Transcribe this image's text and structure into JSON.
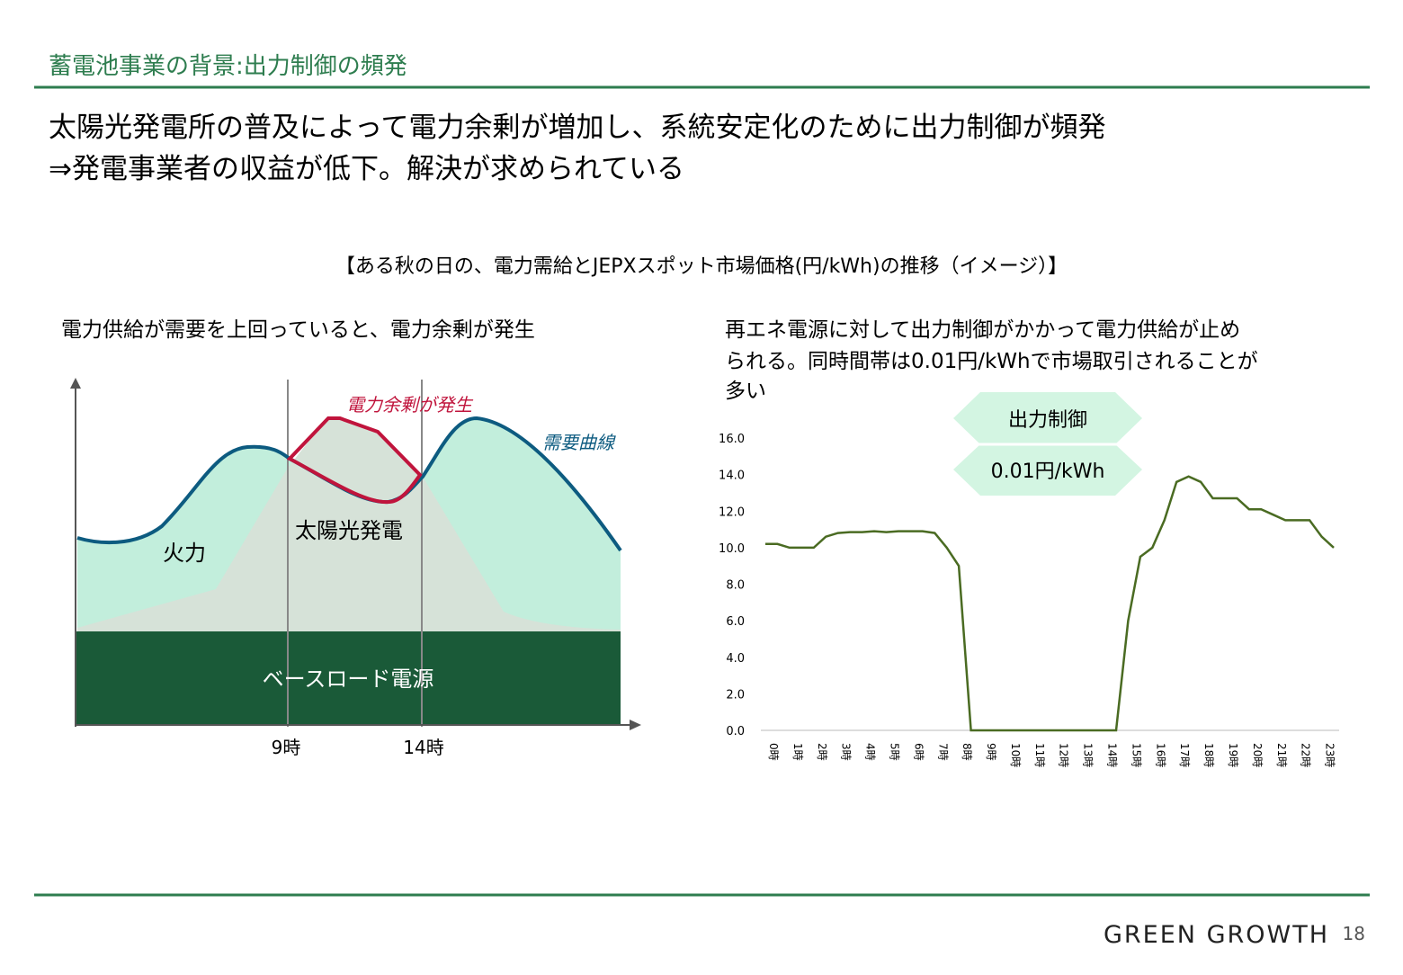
{
  "header": {
    "title": "蓄電池事業の背景:出力制御の頻発"
  },
  "lead": [
    "太陽光発電所の普及によって電力余剰が増加し、系統安定化のために出力制御が頻発",
    "⇒発電事業者の収益が低下。解決が求められている"
  ],
  "figure_caption": "【ある秋の日の、電力需給とJEPXスポット市場価格(円/kWh)の推移（イメージ）】",
  "left": {
    "note": "電力供給が需要を上回っていると、電力余剰が発生",
    "surplus": "電力余剰が発生",
    "demand": "需要曲線",
    "solar": "太陽光発電",
    "thermal": "火力",
    "baseload": "ベースロード電源",
    "t1": "9時",
    "t2": "14時"
  },
  "right_note": [
    "再エネ電源に対して出力制御がかかって電力供給が止め",
    "られる。同時間帯は0.01円/kWhで市場取引されることが",
    "多い"
  ],
  "chart_data": {
    "type": "line",
    "color": "#4a6b22",
    "annotations": [
      "出力制御",
      "0.01円/kWh"
    ],
    "categories": [
      "0時",
      null,
      "1時",
      null,
      "2時",
      null,
      "3時",
      null,
      "4時",
      null,
      "5時",
      null,
      "6時",
      null,
      "7時",
      null,
      "8時",
      null,
      "9時",
      null,
      "10時",
      null,
      "11時",
      null,
      "12時",
      null,
      "13時",
      null,
      "14時",
      null,
      "15時",
      null,
      "16時",
      null,
      "17時",
      null,
      "18時",
      null,
      "19時",
      null,
      "20時",
      null,
      "21時",
      null,
      "22時",
      null,
      "23時",
      null
    ],
    "values": [
      10.2,
      10.2,
      10.0,
      10.0,
      10.0,
      10.6,
      10.8,
      10.85,
      10.85,
      10.9,
      10.85,
      10.9,
      10.9,
      10.9,
      10.8,
      10.0,
      9.0,
      0,
      0,
      0,
      0,
      0,
      0,
      0,
      0,
      0,
      0,
      0,
      0,
      0,
      6.0,
      9.5,
      10.0,
      11.5,
      13.6,
      13.9,
      13.6,
      12.7,
      12.7,
      12.7,
      12.1,
      12.1,
      11.8,
      11.5,
      11.5,
      11.5,
      10.6,
      10.0
    ],
    "ylim": [
      0,
      16
    ],
    "yticks": [
      {
        "value": 0,
        "label": "0.0"
      },
      {
        "value": 2,
        "label": "2.0"
      },
      {
        "value": 4,
        "label": "4.0"
      },
      {
        "value": 6,
        "label": "6.0"
      },
      {
        "value": 8,
        "label": "8.0"
      },
      {
        "value": 10,
        "label": "10.0"
      },
      {
        "value": 12,
        "label": "12.0"
      },
      {
        "value": 14,
        "label": "14.0"
      },
      {
        "value": 16,
        "label": "16.0"
      }
    ]
  },
  "footer": {
    "brand": "GREEN GROWTH",
    "page": "18"
  }
}
